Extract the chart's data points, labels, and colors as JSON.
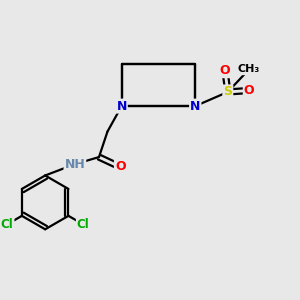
{
  "bg_color": "#e8e8e8",
  "atom_colors": {
    "C": "#000000",
    "N": "#0000cc",
    "O": "#ff0000",
    "S": "#cccc00",
    "Cl": "#00aa00",
    "H": "#6688aa"
  },
  "bond_color": "#000000",
  "bond_width": 1.6,
  "figsize": [
    3.0,
    3.0
  ],
  "dpi": 100
}
